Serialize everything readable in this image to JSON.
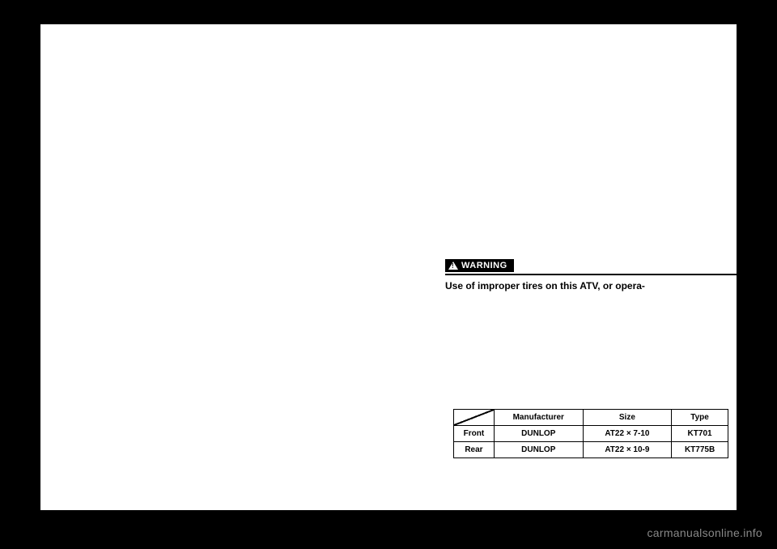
{
  "warning": {
    "label": "WARNING",
    "text": "Use of improper tires on this ATV, or opera-"
  },
  "tire_table": {
    "headers": {
      "manufacturer": "Manufacturer",
      "size": "Size",
      "type": "Type"
    },
    "rows": [
      {
        "position": "Front",
        "manufacturer": "DUNLOP",
        "size": "AT22 × 7-10",
        "type": "KT701"
      },
      {
        "position": "Rear",
        "manufacturer": "DUNLOP",
        "size": "AT22 × 10-9",
        "type": "KT775B"
      }
    ]
  },
  "watermark": "carmanualsonline.info",
  "colors": {
    "page_bg": "#ffffff",
    "body_bg": "#000000",
    "text": "#000000",
    "border": "#000000",
    "watermark": "#888888"
  }
}
